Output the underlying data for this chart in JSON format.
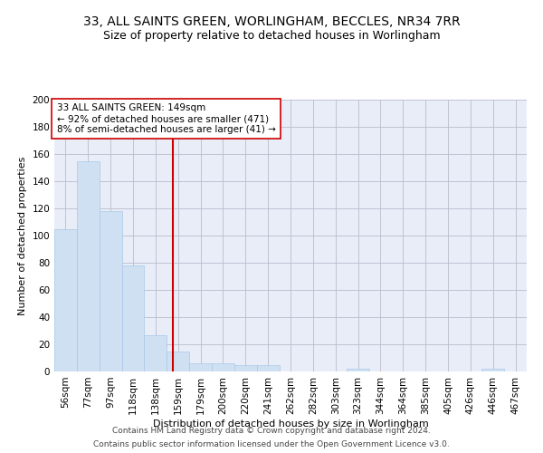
{
  "title1": "33, ALL SAINTS GREEN, WORLINGHAM, BECCLES, NR34 7RR",
  "title2": "Size of property relative to detached houses in Worlingham",
  "xlabel": "Distribution of detached houses by size in Worlingham",
  "ylabel": "Number of detached properties",
  "footer1": "Contains HM Land Registry data © Crown copyright and database right 2024.",
  "footer2": "Contains public sector information licensed under the Open Government Licence v3.0.",
  "annotation_line1": "33 ALL SAINTS GREEN: 149sqm",
  "annotation_line2": "← 92% of detached houses are smaller (471)",
  "annotation_line3": "8% of semi-detached houses are larger (41) →",
  "bar_color": "#cfe0f3",
  "bar_edge_color": "#a8c8e8",
  "red_line_color": "#cc0000",
  "annotation_box_color": "#ffffff",
  "annotation_box_edge": "#cc0000",
  "grid_color": "#bbbbcc",
  "background_color": "#e8edf8",
  "bins": [
    "56sqm",
    "77sqm",
    "97sqm",
    "118sqm",
    "138sqm",
    "159sqm",
    "179sqm",
    "200sqm",
    "220sqm",
    "241sqm",
    "262sqm",
    "282sqm",
    "303sqm",
    "323sqm",
    "344sqm",
    "364sqm",
    "385sqm",
    "405sqm",
    "426sqm",
    "446sqm",
    "467sqm"
  ],
  "values": [
    105,
    155,
    118,
    78,
    27,
    15,
    6,
    6,
    5,
    5,
    0,
    0,
    0,
    2,
    0,
    0,
    0,
    0,
    0,
    2,
    0
  ],
  "red_line_x": 4.75,
  "ylim": [
    0,
    200
  ],
  "yticks": [
    0,
    20,
    40,
    60,
    80,
    100,
    120,
    140,
    160,
    180,
    200
  ],
  "title1_fontsize": 10,
  "title2_fontsize": 9,
  "axis_label_fontsize": 8,
  "tick_fontsize": 7.5,
  "annotation_fontsize": 7.5,
  "footer_fontsize": 6.5
}
